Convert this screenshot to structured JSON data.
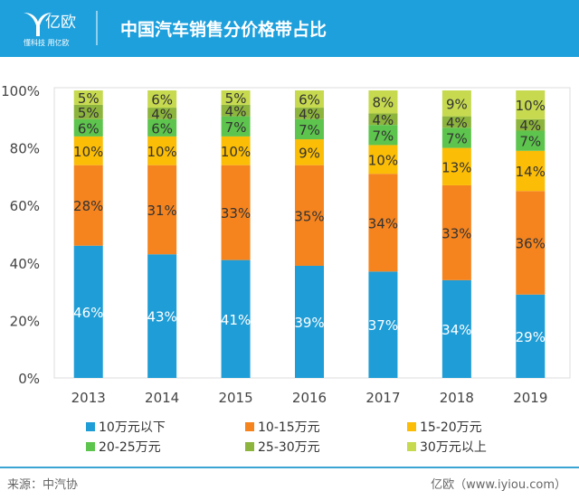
{
  "header": {
    "logo_text": "亿欧",
    "logo_slogan": "懂科技 用亿欧",
    "title": "中国汽车销售分价格带占比"
  },
  "chart_data": {
    "type": "bar",
    "stacked": true,
    "categories": [
      "2013",
      "2014",
      "2015",
      "2016",
      "2017",
      "2018",
      "2019"
    ],
    "ylim": [
      0,
      100
    ],
    "yticks": [
      "0%",
      "20%",
      "40%",
      "60%",
      "80%",
      "100%"
    ],
    "legend_position": "bottom",
    "grid": false,
    "series": [
      {
        "name": "10万元以下",
        "color": "#1f9dd6",
        "values": [
          46,
          43,
          41,
          39,
          37,
          34,
          29
        ]
      },
      {
        "name": "10-15万元",
        "color": "#f5841f",
        "values": [
          28,
          31,
          33,
          35,
          34,
          33,
          36
        ]
      },
      {
        "name": "15-20万元",
        "color": "#fbbd05",
        "values": [
          10,
          10,
          10,
          9,
          10,
          13,
          14
        ]
      },
      {
        "name": "20-25万元",
        "color": "#5dc44d",
        "values": [
          6,
          6,
          7,
          7,
          7,
          7,
          7
        ]
      },
      {
        "name": "25-30万元",
        "color": "#8db43d",
        "values": [
          5,
          4,
          4,
          4,
          4,
          4,
          4
        ]
      },
      {
        "name": "30万元以上",
        "color": "#c6d94f",
        "values": [
          5,
          6,
          5,
          6,
          8,
          9,
          10
        ]
      }
    ]
  },
  "footer": {
    "source": "来源：中汽协",
    "credit": "亿欧（www.iyiou.com）"
  }
}
